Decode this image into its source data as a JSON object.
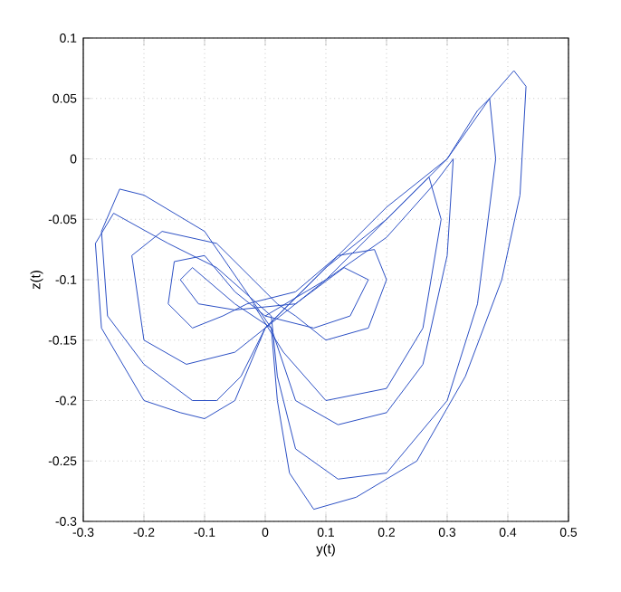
{
  "chart_data": {
    "type": "line",
    "xlabel": "y(t)",
    "ylabel": "z(t)",
    "xlim": [
      -0.3,
      0.5
    ],
    "ylim": [
      -0.3,
      0.1
    ],
    "xticks": [
      -0.3,
      -0.2,
      -0.1,
      0,
      0.1,
      0.2,
      0.3,
      0.4,
      0.5
    ],
    "yticks": [
      -0.3,
      -0.25,
      -0.2,
      -0.15,
      -0.1,
      -0.05,
      0,
      0.05,
      0.1
    ],
    "grid": true,
    "marker": "none",
    "line_style": "solid",
    "series": [
      {
        "color": "#2b4fc4",
        "x": [
          0,
          -0.05,
          -0.1,
          -0.15,
          -0.16,
          -0.12,
          -0.07,
          -0.03,
          0.05,
          0.12,
          0.18,
          0.2,
          0.17,
          0.1,
          0.05,
          0.02,
          -0.08,
          -0.17,
          -0.22,
          -0.2,
          -0.13,
          -0.05,
          0,
          0.1,
          0.2,
          0.28,
          0.31,
          0.3,
          0.26,
          0.2,
          0.12,
          0.05,
          0.01,
          -0.1,
          -0.2,
          -0.24,
          -0.27,
          -0.26,
          -0.2,
          -0.12,
          -0.08,
          -0.04,
          0,
          0.1,
          0.2,
          0.3,
          0.35,
          0.37,
          0.38,
          0.35,
          0.3,
          0.2,
          0.12,
          0.05,
          0.02,
          0.01,
          -0.08,
          -0.16,
          -0.25,
          -0.28,
          -0.27,
          -0.2,
          -0.14,
          -0.1,
          -0.05,
          0,
          0.1,
          0.2,
          0.3,
          0.37,
          0.41,
          0.43,
          0.42,
          0.39,
          0.33,
          0.25,
          0.15,
          0.08,
          0.04,
          0.02,
          0.01,
          -0.05,
          -0.12,
          -0.14,
          -0.11,
          -0.05,
          0.05,
          0.13,
          0.17,
          0.14,
          0.08,
          0,
          0.1,
          0.2,
          0.27,
          0.29,
          0.26,
          0.2,
          0.1,
          0.03,
          -0.02
        ],
        "values": [
          -0.13,
          -0.11,
          -0.08,
          -0.085,
          -0.12,
          -0.14,
          -0.13,
          -0.12,
          -0.11,
          -0.08,
          -0.075,
          -0.1,
          -0.14,
          -0.15,
          -0.13,
          -0.12,
          -0.07,
          -0.06,
          -0.08,
          -0.15,
          -0.17,
          -0.16,
          -0.14,
          -0.1,
          -0.065,
          -0.02,
          0,
          -0.08,
          -0.17,
          -0.21,
          -0.22,
          -0.2,
          -0.14,
          -0.06,
          -0.03,
          -0.025,
          -0.06,
          -0.13,
          -0.17,
          -0.2,
          -0.2,
          -0.18,
          -0.14,
          -0.09,
          -0.05,
          0,
          0.04,
          0.05,
          0,
          -0.12,
          -0.2,
          -0.26,
          -0.265,
          -0.24,
          -0.18,
          -0.13,
          -0.09,
          -0.07,
          -0.045,
          -0.07,
          -0.14,
          -0.2,
          -0.21,
          -0.215,
          -0.2,
          -0.14,
          -0.09,
          -0.04,
          0,
          0.05,
          0.073,
          0.06,
          -0.03,
          -0.1,
          -0.18,
          -0.25,
          -0.28,
          -0.29,
          -0.26,
          -0.2,
          -0.14,
          -0.12,
          -0.09,
          -0.1,
          -0.12,
          -0.125,
          -0.12,
          -0.09,
          -0.1,
          -0.13,
          -0.14,
          -0.13,
          -0.1,
          -0.05,
          -0.015,
          -0.05,
          -0.14,
          -0.19,
          -0.2,
          -0.16,
          -0.12
        ]
      }
    ]
  }
}
